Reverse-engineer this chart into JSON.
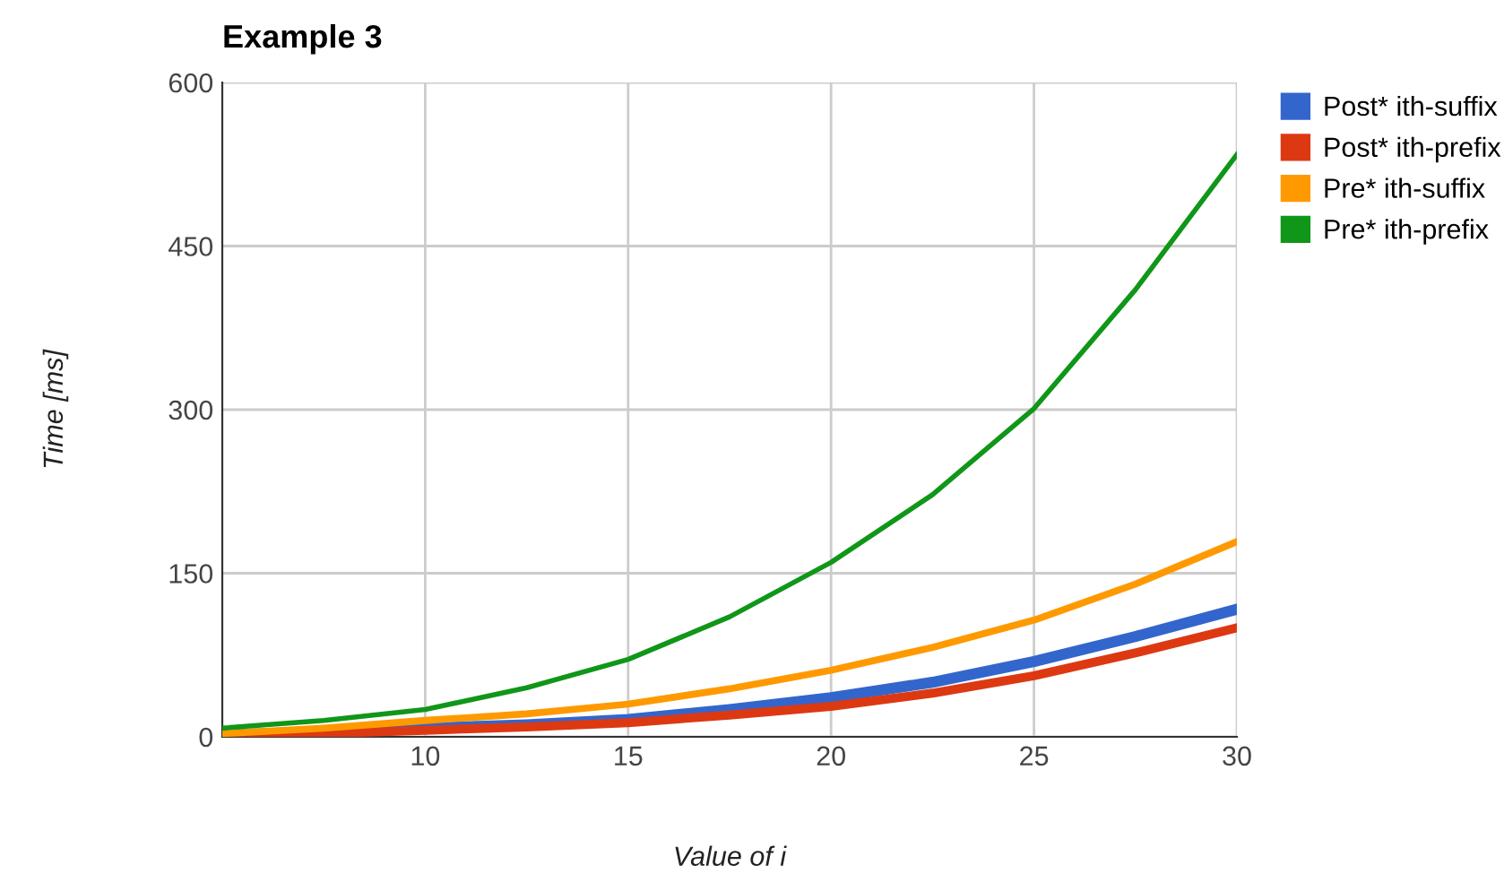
{
  "chart_data": {
    "type": "line",
    "title": "Example 3",
    "xlabel": "Value of i",
    "ylabel": "Time [ms]",
    "x": [
      5,
      7.5,
      10,
      12.5,
      15,
      17.5,
      20,
      22.5,
      25,
      27.5,
      30
    ],
    "series": [
      {
        "name": "Post* ith-suffix",
        "color": "#3366cc",
        "values": [
          2,
          4,
          8,
          11,
          16,
          25,
          36,
          50,
          69,
          92,
          117
        ]
      },
      {
        "name": "Post* ith-prefix",
        "color": "#dc3912",
        "values": [
          1,
          3,
          6,
          9,
          13,
          20,
          28,
          40,
          56,
          77,
          100
        ]
      },
      {
        "name": "Pre* ith-suffix",
        "color": "#ff9900",
        "values": [
          3,
          8,
          15,
          21,
          30,
          44,
          61,
          82,
          107,
          140,
          179
        ]
      },
      {
        "name": "Pre* ith-prefix",
        "color": "#109618",
        "values": [
          8,
          15,
          25,
          45,
          71,
          110,
          160,
          222,
          301,
          410,
          534
        ]
      }
    ],
    "xlim": [
      5,
      30
    ],
    "xticks": [
      10,
      15,
      20,
      25,
      30
    ],
    "ylim": [
      0,
      600
    ],
    "yticks": [
      0,
      150,
      300,
      450,
      600
    ],
    "grid": true,
    "legend": "top right",
    "marker": "none",
    "line_style": "solid"
  }
}
